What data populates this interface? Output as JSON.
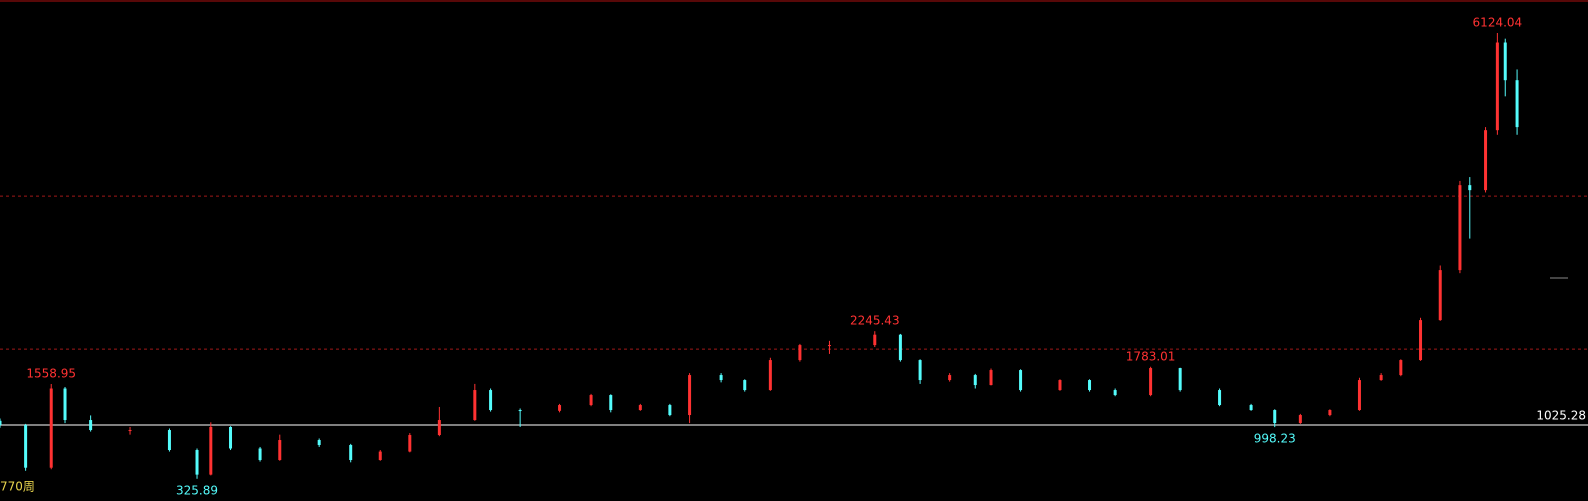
{
  "chart_data": {
    "type": "candlestick",
    "period_label": "770周",
    "x": [
      0,
      13,
      26,
      33,
      46,
      66,
      86,
      100,
      107,
      117,
      132,
      142,
      162,
      178,
      193,
      208,
      223,
      241,
      249,
      264,
      284,
      300,
      310,
      325,
      340,
      350,
      366,
      378,
      391,
      406,
      421,
      444,
      457,
      467,
      482,
      495,
      503,
      518,
      538,
      553,
      566,
      584,
      599,
      619,
      635,
      647,
      660,
      675,
      690,
      701,
      711,
      721,
      731,
      741,
      746,
      754,
      760,
      764,
      770
    ],
    "candles": [
      [
        1080,
        1110,
        990,
        1025
      ],
      [
        1025,
        1040,
        430,
        470
      ],
      [
        470,
        1558.95,
        450,
        1500
      ],
      [
        1500,
        1520,
        1050,
        1090
      ],
      [
        1090,
        1150,
        940,
        960
      ],
      [
        960,
        1000,
        900,
        960
      ],
      [
        960,
        980,
        680,
        700
      ],
      [
        700,
        720,
        325.89,
        380
      ],
      [
        380,
        1060,
        370,
        1000
      ],
      [
        1000,
        1010,
        700,
        720
      ],
      [
        720,
        740,
        550,
        570
      ],
      [
        570,
        900,
        560,
        830
      ],
      [
        830,
        850,
        740,
        765
      ],
      [
        765,
        780,
        540,
        570
      ],
      [
        570,
        700,
        560,
        680
      ],
      [
        680,
        920,
        670,
        895
      ],
      [
        895,
        1260,
        880,
        1090
      ],
      [
        1090,
        1560,
        1080,
        1480
      ],
      [
        1480,
        1500,
        1200,
        1220
      ],
      [
        1220,
        1240,
        1000,
        1210
      ],
      [
        1210,
        1300,
        1190,
        1285
      ],
      [
        1285,
        1430,
        1270,
        1415
      ],
      [
        1415,
        1425,
        1190,
        1220
      ],
      [
        1220,
        1300,
        1210,
        1285
      ],
      [
        1285,
        1300,
        1140,
        1155
      ],
      [
        1155,
        1700,
        1050,
        1675
      ],
      [
        1675,
        1700,
        1580,
        1610
      ],
      [
        1610,
        1620,
        1460,
        1480
      ],
      [
        1480,
        1900,
        1470,
        1870
      ],
      [
        1870,
        2080,
        1850,
        2065
      ],
      [
        2065,
        2120,
        1950,
        2065
      ],
      [
        2065,
        2245.43,
        2040,
        2200
      ],
      [
        2200,
        2210,
        1850,
        1870
      ],
      [
        1870,
        1880,
        1560,
        1610
      ],
      [
        1610,
        1700,
        1590,
        1675
      ],
      [
        1675,
        1690,
        1500,
        1545
      ],
      [
        1545,
        1760,
        1540,
        1740
      ],
      [
        1740,
        1750,
        1460,
        1480
      ],
      [
        1480,
        1620,
        1470,
        1610
      ],
      [
        1610,
        1620,
        1460,
        1480
      ],
      [
        1480,
        1500,
        1400,
        1415
      ],
      [
        1415,
        1783.01,
        1400,
        1766
      ],
      [
        1766,
        1770,
        1460,
        1480
      ],
      [
        1480,
        1500,
        1270,
        1285
      ],
      [
        1285,
        1300,
        1210,
        1220
      ],
      [
        1220,
        1230,
        998.23,
        1051
      ],
      [
        1051,
        1170,
        1040,
        1155
      ],
      [
        1155,
        1230,
        1140,
        1220
      ],
      [
        1220,
        1640,
        1210,
        1610
      ],
      [
        1610,
        1700,
        1600,
        1675
      ],
      [
        1675,
        1880,
        1660,
        1870
      ],
      [
        1870,
        2420,
        1860,
        2390
      ],
      [
        2390,
        3100,
        2380,
        3040
      ],
      [
        3040,
        4200,
        3000,
        4145
      ],
      [
        4145,
        4250,
        3450,
        4080
      ],
      [
        4080,
        4900,
        4050,
        4860
      ],
      [
        4860,
        6124.04,
        4800,
        6000
      ],
      [
        6000,
        6050,
        5300,
        5510
      ],
      [
        5510,
        5650,
        4800,
        4900
      ]
    ],
    "xlim": [
      0,
      806
    ],
    "ylim": [
      37,
      6553
    ],
    "gridlines": [
      4003,
      2013
    ],
    "baseline": 1025.28,
    "annotations": [
      {
        "x": 760,
        "value": 6124.04
      },
      {
        "x": 444,
        "value": 2245.43
      },
      {
        "x": 584,
        "value": 1783.01
      },
      {
        "x": 26,
        "value": 1558.95
      },
      {
        "x": 100,
        "value": 325.89
      },
      {
        "x": 647,
        "value": 998.23
      }
    ],
    "up_color": "#ff3232",
    "down_color": "#54fcfc"
  }
}
